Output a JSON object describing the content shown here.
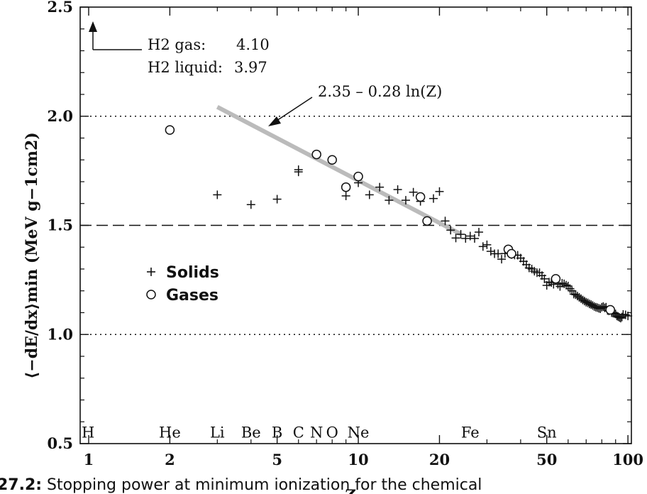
{
  "chart_data": {
    "type": "scatter",
    "title": "",
    "xlabel": "Z",
    "ylabel": "⟨−dE/dx⟩min (MeV g−1cm2)",
    "xscale": "log",
    "xlim": [
      0.93,
      103
    ],
    "ylim": [
      0.5,
      2.5
    ],
    "x_ticks": [
      1,
      2,
      5,
      10,
      20,
      50,
      100
    ],
    "y_ticks": [
      0.5,
      1.0,
      1.5,
      2.0,
      2.5
    ],
    "grid": false,
    "reference_lines": [
      {
        "y": 2.0,
        "style": "dotted"
      },
      {
        "y": 1.5,
        "style": "dashed"
      },
      {
        "y": 1.0,
        "style": "dotted"
      }
    ],
    "fit_line": {
      "label": "2.35 – 0.28 ln(Z)",
      "x_range": [
        3,
        24
      ],
      "intercept": 2.35,
      "slope_ln": -0.28,
      "color": "#bbbbbb"
    },
    "h2_annotation": {
      "gas_label": "H2 gas:",
      "gas_value": "4.10",
      "liquid_label": "H2 liquid:",
      "liquid_value": "3.97"
    },
    "legend": {
      "placement": "middle-left",
      "entries": [
        {
          "marker": "+",
          "label": "Solids"
        },
        {
          "marker": "circle",
          "label": "Gases"
        }
      ]
    },
    "element_labels": [
      {
        "symbol": "H",
        "z": 1
      },
      {
        "symbol": "He",
        "z": 2
      },
      {
        "symbol": "Li",
        "z": 3
      },
      {
        "symbol": "Be",
        "z": 4
      },
      {
        "symbol": "B",
        "z": 5
      },
      {
        "symbol": "C",
        "z": 6
      },
      {
        "symbol": "N",
        "z": 7
      },
      {
        "symbol": "O",
        "z": 8
      },
      {
        "symbol": "Ne",
        "z": 10
      },
      {
        "symbol": "Fe",
        "z": 26
      },
      {
        "symbol": "Sn",
        "z": 50
      }
    ],
    "series": [
      {
        "name": "Solids",
        "marker": "plus",
        "points": [
          [
            3,
            1.64
          ],
          [
            4,
            1.595
          ],
          [
            5,
            1.62
          ],
          [
            6,
            1.745
          ],
          [
            6,
            1.755
          ],
          [
            9,
            1.635
          ],
          [
            10,
            1.695
          ],
          [
            11,
            1.64
          ],
          [
            12,
            1.675
          ],
          [
            13,
            1.615
          ],
          [
            14,
            1.664
          ],
          [
            15,
            1.615
          ],
          [
            16,
            1.652
          ],
          [
            17,
            1.61
          ],
          [
            19,
            1.623
          ],
          [
            20,
            1.655
          ],
          [
            21,
            1.52
          ],
          [
            22,
            1.478
          ],
          [
            23,
            1.442
          ],
          [
            24,
            1.459
          ],
          [
            25,
            1.44
          ],
          [
            26,
            1.451
          ],
          [
            27,
            1.44
          ],
          [
            28,
            1.469
          ],
          [
            29,
            1.403
          ],
          [
            30,
            1.411
          ],
          [
            31,
            1.381
          ],
          [
            32,
            1.37
          ],
          [
            33,
            1.37
          ],
          [
            34,
            1.345
          ],
          [
            35,
            1.371
          ],
          [
            37,
            1.366
          ],
          [
            38,
            1.364
          ],
          [
            39,
            1.363
          ],
          [
            40,
            1.35
          ],
          [
            41,
            1.335
          ],
          [
            42,
            1.32
          ],
          [
            43,
            1.305
          ],
          [
            44,
            1.3
          ],
          [
            45,
            1.29
          ],
          [
            46,
            1.283
          ],
          [
            47,
            1.283
          ],
          [
            48,
            1.27
          ],
          [
            49,
            1.255
          ],
          [
            50,
            1.225
          ],
          [
            51,
            1.24
          ],
          [
            52,
            1.238
          ],
          [
            53,
            1.23
          ],
          [
            55,
            1.23
          ],
          [
            56,
            1.22
          ],
          [
            57,
            1.235
          ],
          [
            58,
            1.232
          ],
          [
            59,
            1.226
          ],
          [
            60,
            1.222
          ],
          [
            61,
            1.21
          ],
          [
            62,
            1.2
          ],
          [
            63,
            1.185
          ],
          [
            64,
            1.182
          ],
          [
            65,
            1.176
          ],
          [
            66,
            1.17
          ],
          [
            67,
            1.164
          ],
          [
            68,
            1.158
          ],
          [
            69,
            1.153
          ],
          [
            70,
            1.148
          ],
          [
            71,
            1.145
          ],
          [
            72,
            1.14
          ],
          [
            73,
            1.137
          ],
          [
            74,
            1.133
          ],
          [
            75,
            1.128
          ],
          [
            76,
            1.125
          ],
          [
            77,
            1.123
          ],
          [
            78,
            1.12
          ],
          [
            79,
            1.118
          ],
          [
            80,
            1.125
          ],
          [
            81,
            1.128
          ],
          [
            82,
            1.122
          ],
          [
            83,
            1.125
          ],
          [
            84,
            1.11
          ],
          [
            85,
            1.108
          ],
          [
            87,
            1.1
          ],
          [
            88,
            1.098
          ],
          [
            89,
            1.096
          ],
          [
            90,
            1.094
          ],
          [
            91,
            1.085
          ],
          [
            92,
            1.082
          ],
          [
            93,
            1.078
          ],
          [
            94,
            1.075
          ],
          [
            95,
            1.08
          ],
          [
            96,
            1.092
          ],
          [
            98,
            1.09
          ],
          [
            100,
            1.085
          ]
        ]
      },
      {
        "name": "Gases",
        "marker": "circle",
        "points": [
          [
            2,
            1.937
          ],
          [
            7,
            1.825
          ],
          [
            8,
            1.8
          ],
          [
            9,
            1.675
          ],
          [
            10,
            1.724
          ],
          [
            17,
            1.63
          ],
          [
            18,
            1.52
          ],
          [
            36,
            1.39
          ],
          [
            37,
            1.37
          ],
          [
            54,
            1.255
          ],
          [
            86,
            1.113
          ]
        ]
      }
    ]
  },
  "caption": {
    "prefix": "27.2:",
    "text": "Stopping power at minimum ionization for the chemical"
  }
}
